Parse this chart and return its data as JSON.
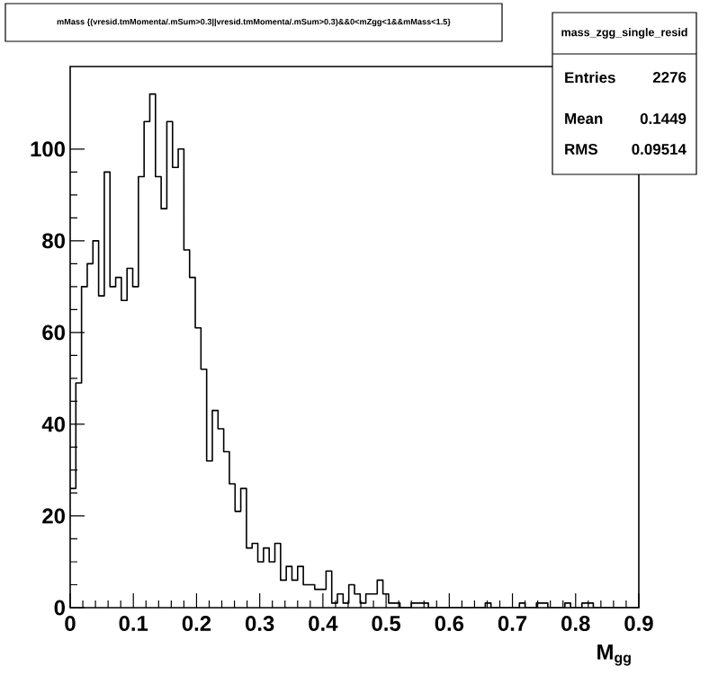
{
  "chart_data": {
    "type": "histogram",
    "title": "mMass {(vresid.tmMomenta/.mSum>0.3||vresid.tmMomenta/.mSum>0.3)&&0<mZgg<1&&mMass<1.5}",
    "xlabel": "M$_{gg}$",
    "bins": [
      0,
      0.009,
      0.018,
      0.027,
      0.036,
      0.045,
      0.054,
      0.063,
      0.072,
      0.081,
      0.09,
      0.099,
      0.108,
      0.117,
      0.126,
      0.135,
      0.144,
      0.153,
      0.162,
      0.171,
      0.18,
      0.189,
      0.198,
      0.207,
      0.216,
      0.225,
      0.234,
      0.243,
      0.252,
      0.261,
      0.27,
      0.279,
      0.288,
      0.297,
      0.306,
      0.315,
      0.324,
      0.333,
      0.342,
      0.351,
      0.36,
      0.369,
      0.378,
      0.387,
      0.396,
      0.405,
      0.414,
      0.423,
      0.432,
      0.441,
      0.45,
      0.459,
      0.468,
      0.477,
      0.486,
      0.495,
      0.504,
      0.513,
      0.522,
      0.531,
      0.54,
      0.549,
      0.558,
      0.567,
      0.576,
      0.585,
      0.594,
      0.603,
      0.612,
      0.621,
      0.63,
      0.639,
      0.648,
      0.657,
      0.666,
      0.675,
      0.684,
      0.693,
      0.702,
      0.711,
      0.72,
      0.729,
      0.738,
      0.747,
      0.756,
      0.765,
      0.774,
      0.783,
      0.792,
      0.801,
      0.81,
      0.819,
      0.828,
      0.837,
      0.846,
      0.855,
      0.864,
      0.873,
      0.882,
      0.891,
      0.9
    ],
    "values": [
      26,
      49,
      70,
      75,
      80,
      68,
      95,
      70,
      72,
      67,
      74,
      70,
      94,
      106,
      112,
      94,
      87,
      106,
      96,
      100,
      78,
      72,
      61,
      52,
      32,
      43,
      39,
      34,
      27,
      21,
      26,
      13,
      14,
      10,
      13,
      10,
      14,
      6,
      9,
      6,
      9,
      5,
      5,
      4,
      4,
      8,
      1,
      3,
      1,
      5,
      3,
      1,
      3,
      3,
      6,
      3,
      1,
      1,
      0,
      0,
      1,
      1,
      1,
      0,
      0,
      0,
      0,
      0,
      0,
      0,
      0,
      0,
      0,
      1,
      0,
      0,
      0,
      0,
      0,
      1,
      0,
      0,
      1,
      1,
      0,
      0,
      0,
      1,
      0,
      0,
      1,
      1,
      0,
      0,
      0,
      0,
      0,
      0,
      0,
      0
    ],
    "color": "#000000",
    "xlim": [
      0,
      0.9
    ],
    "ylim": [
      0,
      118
    ],
    "xticks": [
      0,
      0.1,
      0.2,
      0.3,
      0.4,
      0.5,
      0.6,
      0.7,
      0.8,
      0.9
    ],
    "yticks": [
      0,
      20,
      40,
      60,
      80,
      100
    ],
    "annotations": [
      "mass_zgg_single_resid",
      "Entries",
      "2276",
      "Mean",
      "0.1449",
      "RMS",
      "0.09514"
    ]
  }
}
